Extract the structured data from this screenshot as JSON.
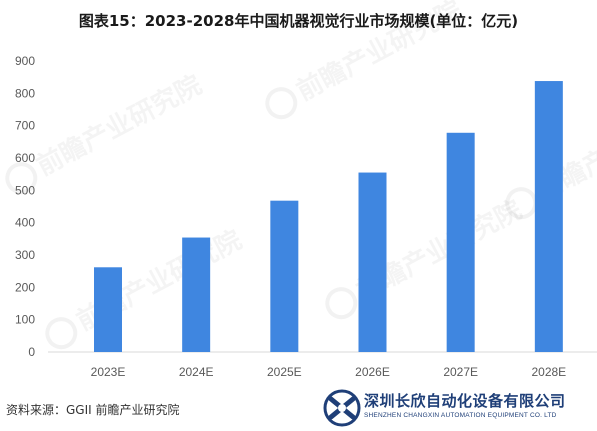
{
  "title": "图表15：2023-2028年中国机器视觉行业市场规模(单位：亿元)",
  "source": "资料来源：GGII 前瞻产业研究院",
  "logo": {
    "name": "深圳长欣自动化设备有限公司",
    "subtitle": "SHENZHEN CHANGXIN AUTOMATION EQUIPMENT CO. LTD"
  },
  "watermark": {
    "text": "前瞻产业研究院"
  },
  "colors": {
    "bar": "#3f86e0",
    "axis": "#d9d9d9",
    "logo": "#1f3f78"
  },
  "chart_data": {
    "type": "bar",
    "title": "图表15：2023-2028年中国机器视觉行业市场规模(单位：亿元)",
    "xlabel": "",
    "ylabel": "",
    "categories": [
      "2023E",
      "2024E",
      "2025E",
      "2026E",
      "2027E",
      "2028E"
    ],
    "values": [
      262,
      354,
      468,
      555,
      678,
      838
    ],
    "ylim": [
      0,
      900
    ],
    "yticks": [
      0,
      100,
      200,
      300,
      400,
      500,
      600,
      700,
      800,
      900
    ],
    "grid": false,
    "legend": "none"
  }
}
